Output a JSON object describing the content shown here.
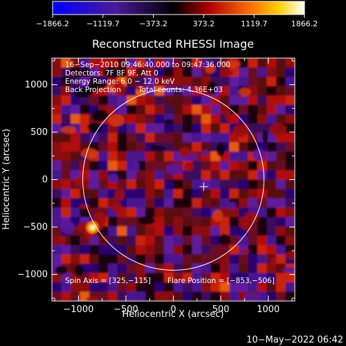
{
  "chart_data": {
    "type": "heatmap",
    "title": "Reconstructed RHESSI Image",
    "xlabel": "Heliocentric X (arcsec)",
    "ylabel": "Heliocentric Y (arcsec)",
    "xlim": [
      -1280,
      1280
    ],
    "ylim": [
      -1280,
      1280
    ],
    "xticks": [
      -1000,
      -500,
      0,
      500,
      1000
    ],
    "yticks": [
      -1000,
      -500,
      0,
      500,
      1000
    ],
    "xtick_labels": [
      "−1000",
      "−500",
      "0",
      "500",
      "1000"
    ],
    "ytick_labels": [
      "−1000",
      "−500",
      "0",
      "500",
      "1000"
    ],
    "colorbar": {
      "range": [
        -1866.2,
        1866.2
      ],
      "ticks": [
        -1866.2,
        -1119.7,
        -373.2,
        373.2,
        1119.7,
        1866.2
      ],
      "tick_labels": [
        "−1866.2",
        "−1119.7",
        "−373.2",
        "373.2",
        "1119.7",
        "1866.2"
      ],
      "colors": [
        "#0000ff",
        "#5a1aa0",
        "#000000",
        "#c00000",
        "#ff8c00",
        "#ffff60",
        "#ffffff"
      ]
    },
    "annotations": {
      "line1": "16−Sep−2010 09:46:40.000 to 09:47:36.000",
      "line2": "Detectors: 7F 8F 9F, Att 0",
      "line3": "Energy Range: 6.0 − 12.0 keV",
      "line4a": "Back Projection",
      "line4b": "Total counts: 4.36E+03",
      "spin_axis": "Spin Axis = [325,−115]",
      "flare_position": "Flare Position = [−853,−506]"
    },
    "solar_limb_radius": 955,
    "crosshair": [
      320,
      -75
    ],
    "bright_source": [
      -853,
      -506
    ]
  },
  "footer_date": "10−May−2022 06:42"
}
